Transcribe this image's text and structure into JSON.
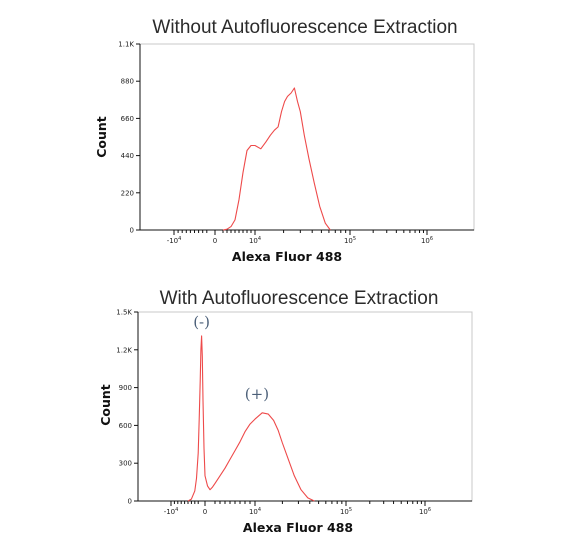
{
  "chart_data": [
    {
      "type": "area",
      "title": "Without Autofluorescence Extraction",
      "xlabel": "Alexa Fluor 488",
      "ylabel": "Count",
      "x_scale": "biexponential",
      "ylim": [
        0,
        1100
      ],
      "y_ticks": [
        {
          "value": 0,
          "label": "0"
        },
        {
          "value": 220,
          "label": "220"
        },
        {
          "value": 440,
          "label": "440"
        },
        {
          "value": 660,
          "label": "660"
        },
        {
          "value": 880,
          "label": "880"
        },
        {
          "value": 1100,
          "label": "1.1K"
        }
      ],
      "x_ticks": [
        {
          "value": -10000,
          "base": "-10",
          "exp": "4"
        },
        {
          "value": 0,
          "base": "0",
          "exp": ""
        },
        {
          "value": 10000,
          "base": "10",
          "exp": "4"
        },
        {
          "value": 100000,
          "base": "10",
          "exp": "5"
        },
        {
          "value": 1000000,
          "base": "10",
          "exp": "6"
        }
      ],
      "series": [
        {
          "color": "#ee4a4a",
          "x": [
            2000,
            3000,
            4000,
            5000,
            6000,
            7000,
            8000,
            9000,
            10000,
            11500,
            13000,
            14500,
            16000,
            17500,
            19000,
            20500,
            22000,
            24000,
            26000,
            28000,
            30000,
            33000,
            37000,
            42000,
            48000,
            55000,
            62000
          ],
          "y": [
            0,
            5,
            20,
            60,
            180,
            340,
            470,
            500,
            500,
            480,
            520,
            560,
            590,
            610,
            700,
            760,
            790,
            810,
            840,
            760,
            700,
            560,
            420,
            280,
            140,
            40,
            0
          ]
        }
      ]
    },
    {
      "type": "area",
      "title": "With Autofluorescence Extraction",
      "xlabel": "Alexa Fluor 488",
      "ylabel": "Count",
      "x_scale": "biexponential",
      "ylim": [
        0,
        1500
      ],
      "y_ticks": [
        {
          "value": 0,
          "label": "0"
        },
        {
          "value": 300,
          "label": "300"
        },
        {
          "value": 600,
          "label": "600"
        },
        {
          "value": 900,
          "label": "900"
        },
        {
          "value": 1200,
          "label": "1.2K"
        },
        {
          "value": 1500,
          "label": "1.5K"
        }
      ],
      "x_ticks": [
        {
          "value": -10000,
          "base": "-10",
          "exp": "4"
        },
        {
          "value": 0,
          "base": "0",
          "exp": ""
        },
        {
          "value": 10000,
          "base": "10",
          "exp": "4"
        },
        {
          "value": 100000,
          "base": "10",
          "exp": "5"
        },
        {
          "value": 1000000,
          "base": "10",
          "exp": "6"
        }
      ],
      "annotations": [
        {
          "text": "(-)",
          "x": -1000,
          "y": 1380
        },
        {
          "text": "(+)",
          "x": 10500,
          "y": 810
        }
      ],
      "series": [
        {
          "color": "#ee4a4a",
          "x": [
            -5000,
            -4000,
            -3000,
            -2500,
            -2000,
            -1700,
            -1400,
            -1200,
            -1000,
            -800,
            -600,
            -300,
            0,
            500,
            1000,
            1500,
            2000,
            3000,
            4000,
            5000,
            6000,
            7000,
            8000,
            9000,
            10000,
            12000,
            14000,
            16000,
            18000,
            20000,
            23000,
            27000,
            32000,
            38000,
            45000
          ],
          "y": [
            0,
            15,
            80,
            180,
            380,
            650,
            950,
            1200,
            1310,
            1150,
            800,
            420,
            200,
            120,
            90,
            110,
            140,
            200,
            260,
            330,
            400,
            470,
            550,
            610,
            650,
            700,
            690,
            640,
            560,
            460,
            340,
            200,
            90,
            25,
            0
          ]
        }
      ]
    }
  ]
}
